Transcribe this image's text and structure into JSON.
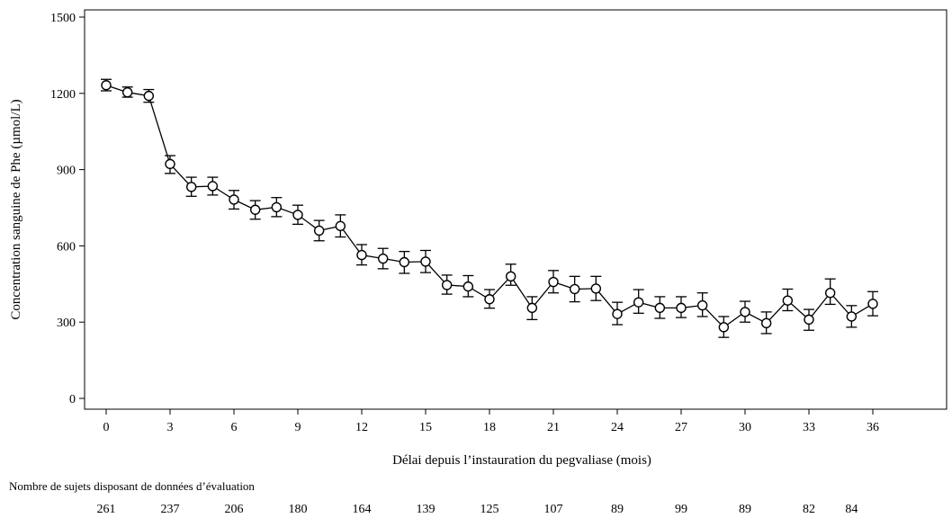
{
  "chart_data": {
    "type": "line",
    "xlabel": "Délai depuis l’instauration du pegvaliase (mois)",
    "ylabel": "Concentration sanguine de Phe (µmol/L)",
    "xlim": [
      0,
      36
    ],
    "ylim": [
      0,
      1500
    ],
    "xticks": [
      0,
      3,
      6,
      9,
      12,
      15,
      18,
      21,
      24,
      27,
      30,
      33,
      36
    ],
    "yticks": [
      0,
      300,
      600,
      900,
      1200,
      1500
    ],
    "grid": false,
    "series": [
      {
        "marker": "open-circle",
        "error_bars": true,
        "x": [
          0,
          1,
          2,
          3,
          4,
          5,
          6,
          7,
          8,
          9,
          10,
          11,
          12,
          13,
          14,
          15,
          16,
          17,
          18,
          19,
          20,
          21,
          22,
          23,
          24,
          25,
          26,
          27,
          28,
          29,
          30,
          31,
          32,
          33,
          34,
          35,
          36
        ],
        "y": [
          1232,
          1204,
          1190,
          922,
          832,
          835,
          782,
          742,
          752,
          722,
          660,
          678,
          564,
          550,
          536,
          538,
          446,
          440,
          390,
          480,
          356,
          458,
          430,
          432,
          332,
          378,
          356,
          356,
          366,
          280,
          340,
          296,
          385,
          310,
          415,
          322,
          372
        ],
        "err_low": [
          1210,
          1185,
          1165,
          885,
          795,
          800,
          745,
          705,
          715,
          685,
          620,
          635,
          525,
          510,
          492,
          495,
          410,
          400,
          355,
          445,
          310,
          415,
          380,
          385,
          290,
          335,
          315,
          318,
          322,
          240,
          300,
          255,
          345,
          268,
          370,
          280,
          325
        ],
        "err_high": [
          1255,
          1225,
          1215,
          955,
          870,
          870,
          818,
          778,
          790,
          760,
          700,
          722,
          605,
          590,
          578,
          582,
          485,
          483,
          428,
          528,
          400,
          503,
          480,
          480,
          378,
          428,
          400,
          400,
          415,
          322,
          382,
          340,
          430,
          350,
          470,
          365,
          420
        ]
      }
    ],
    "risk_table": {
      "title": "Nombre de sujets disposant de données d’évaluation",
      "x": [
        0,
        3,
        6,
        9,
        12,
        15,
        18,
        21,
        24,
        27,
        30,
        33,
        35
      ],
      "values": [
        "261",
        "237",
        "206",
        "180",
        "164",
        "139",
        "125",
        "107",
        "89",
        "99",
        "89",
        "82",
        "84"
      ]
    }
  }
}
